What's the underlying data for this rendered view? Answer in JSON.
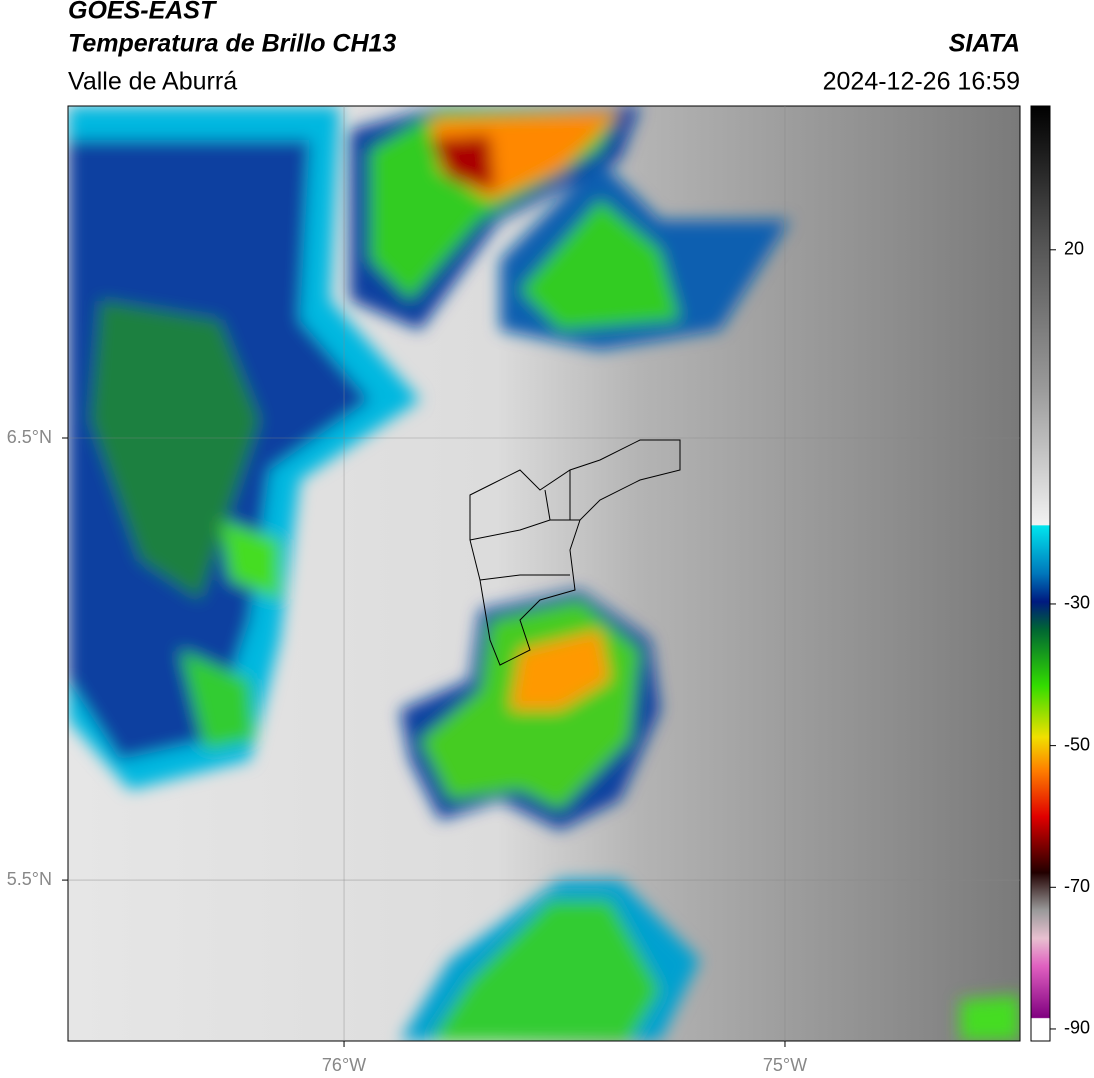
{
  "header": {
    "title": "GOES-EAST",
    "subtitle": "Temperatura de Brillo CH13",
    "region": "Valle de Aburrá",
    "source": "SIATA",
    "timestamp": "2024-12-26 16:59"
  },
  "map": {
    "xlim": [
      -76.626,
      -74.467
    ],
    "ylim": [
      5.136,
      7.251
    ],
    "xticks": [
      {
        "value": -76,
        "label": "76°W"
      },
      {
        "value": -75,
        "label": "75°W"
      }
    ],
    "yticks": [
      {
        "value": 6.5,
        "label": "6.5°N"
      },
      {
        "value": 5.5,
        "label": "5.5°N"
      }
    ]
  },
  "colorbar": {
    "lim": [
      -91.7,
      40.3
    ],
    "ticks": [
      20,
      -30,
      -50,
      -70,
      -90
    ]
  }
}
